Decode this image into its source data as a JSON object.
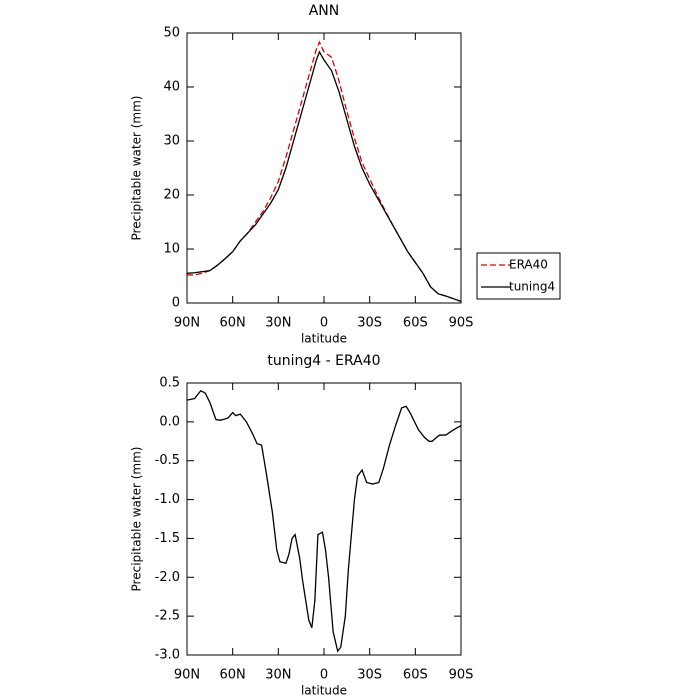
{
  "chart_data": [
    {
      "type": "line",
      "title": "ANN",
      "x_label": "latitude",
      "y_label": "Precipitable water (mm)",
      "x": [
        90,
        85,
        80,
        75,
        70,
        65,
        60,
        55,
        50,
        45,
        40,
        35,
        30,
        25,
        20,
        15,
        10,
        5,
        3,
        0,
        -5,
        -10,
        -15,
        -20,
        -25,
        -30,
        -35,
        -40,
        -45,
        -50,
        -55,
        -60,
        -65,
        -70,
        -75,
        -80,
        -85,
        -90
      ],
      "series": [
        {
          "name": "ERA40",
          "color": "#e00000",
          "dash": "dashed",
          "values": [
            5.2,
            5.2,
            5.5,
            6,
            7,
            8.2,
            9.5,
            11.5,
            13,
            15,
            17,
            19.5,
            22.5,
            27,
            32,
            37,
            42,
            47,
            48.3,
            46.5,
            45.5,
            41,
            35.5,
            30.5,
            26,
            23,
            20,
            17.2,
            14.5,
            12,
            9.5,
            7.5,
            5.5,
            3,
            1.7,
            1.3,
            0.8,
            0.3
          ]
        },
        {
          "name": "tuning4",
          "color": "#000000",
          "dash": "solid",
          "values": [
            5.5,
            5.6,
            5.8,
            6,
            7,
            8.2,
            9.5,
            11.5,
            13,
            14.5,
            16.5,
            18.5,
            21,
            25,
            30,
            35,
            40,
            45,
            46.5,
            45,
            43,
            39,
            34,
            29,
            25,
            22,
            19.5,
            17,
            14.5,
            12,
            9.5,
            7.5,
            5.5,
            3,
            1.7,
            1.3,
            0.8,
            0.3
          ]
        }
      ],
      "xlim": [
        90,
        -90
      ],
      "xticks": [
        {
          "value": 90,
          "label": "90N"
        },
        {
          "value": 60,
          "label": "60N"
        },
        {
          "value": 30,
          "label": "30N"
        },
        0,
        {
          "value": -30,
          "label": "30S"
        },
        {
          "value": -60,
          "label": "60S"
        },
        {
          "value": -90,
          "label": "90S"
        }
      ],
      "ylim": [
        0,
        50
      ],
      "yticks": [
        0,
        10,
        20,
        30,
        40,
        50
      ],
      "legend": "right"
    },
    {
      "type": "line",
      "title": "tuning4 - ERA40",
      "x_label": "latitude",
      "y_label": "Precipitable water (mm)",
      "x": [
        90,
        85,
        81,
        78,
        75,
        71,
        68,
        63,
        60,
        58,
        55,
        51,
        47,
        44,
        41,
        38,
        34,
        31,
        29,
        25,
        23,
        21,
        19,
        16,
        14,
        10,
        8,
        6,
        4,
        1,
        -1,
        -3,
        -6,
        -9,
        -11,
        -14,
        -16,
        -20,
        -22,
        -25,
        -28,
        -32,
        -36,
        -39,
        -43,
        -47,
        -51,
        -54,
        -57,
        -62,
        -66,
        -69,
        -71,
        -74,
        -76,
        -80,
        -83,
        -87,
        -90
      ],
      "color": "#000000",
      "values": [
        0.28,
        0.3,
        0.4,
        0.37,
        0.25,
        0.03,
        0.02,
        0.05,
        0.12,
        0.08,
        0.1,
        0,
        -0.15,
        -0.28,
        -0.3,
        -0.65,
        -1.15,
        -1.65,
        -1.8,
        -1.82,
        -1.7,
        -1.5,
        -1.45,
        -1.75,
        -2.05,
        -2.55,
        -2.65,
        -2.3,
        -1.45,
        -1.42,
        -1.65,
        -2.0,
        -2.7,
        -2.95,
        -2.9,
        -2.5,
        -1.9,
        -1.0,
        -0.7,
        -0.62,
        -0.78,
        -0.8,
        -0.78,
        -0.6,
        -0.3,
        -0.05,
        0.18,
        0.2,
        0.1,
        -0.1,
        -0.2,
        -0.25,
        -0.25,
        -0.2,
        -0.17,
        -0.17,
        -0.13,
        -0.08,
        -0.05
      ],
      "xlim": [
        90,
        -90
      ],
      "xticks": [
        {
          "value": 90,
          "label": "90N"
        },
        {
          "value": 60,
          "label": "60N"
        },
        {
          "value": 30,
          "label": "30N"
        },
        0,
        {
          "value": -30,
          "label": "30S"
        },
        {
          "value": -60,
          "label": "60S"
        },
        {
          "value": -90,
          "label": "90S"
        }
      ],
      "ylim": [
        -3.0,
        0.5
      ],
      "yticks": [
        0.5,
        {
          "value": 0,
          "label": "0.0"
        },
        -0.5,
        {
          "value": -1,
          "label": "-1.0"
        },
        -1.5,
        {
          "value": -2,
          "label": "-2.0"
        },
        -2.5,
        {
          "value": -3,
          "label": "-3.0"
        }
      ]
    }
  ]
}
